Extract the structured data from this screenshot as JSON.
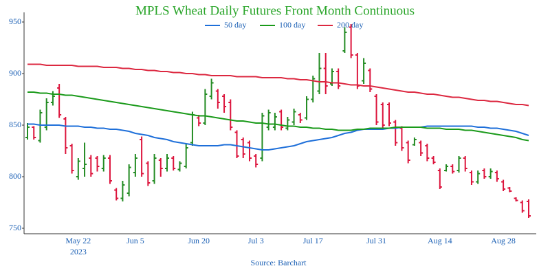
{
  "chart_data": {
    "type": "ohlc",
    "title": "MPLS Wheat Daily Futures Front Month Continuous",
    "source": "Source: Barchart",
    "x_sublabel": "2023",
    "categories": [
      null,
      null,
      null,
      null,
      null,
      null,
      null,
      null,
      "May 22",
      null,
      null,
      null,
      null,
      null,
      null,
      null,
      null,
      "Jun 5",
      null,
      null,
      null,
      null,
      null,
      null,
      null,
      null,
      null,
      "Jun 20",
      null,
      null,
      null,
      null,
      null,
      null,
      null,
      null,
      "Jul 3",
      null,
      null,
      null,
      null,
      null,
      null,
      null,
      null,
      "Jul 17",
      null,
      null,
      null,
      null,
      null,
      null,
      null,
      null,
      null,
      "Jul 31",
      null,
      null,
      null,
      null,
      null,
      null,
      null,
      null,
      null,
      "Aug 14",
      null,
      null,
      null,
      null,
      null,
      null,
      null,
      null,
      null,
      "Aug 28",
      null,
      null,
      null,
      null
    ],
    "ohlc": {
      "up_color": "#228b22",
      "down_color": "#dc143c",
      "open": [
        838,
        848,
        835,
        848,
        872,
        886,
        856,
        830,
        800,
        808,
        818,
        818,
        808,
        818,
        787,
        779,
        784,
        804,
        836,
        813,
        796,
        816,
        808,
        818,
        807,
        810,
        833,
        857,
        852,
        878,
        883,
        878,
        872,
        843,
        836,
        833,
        820,
        818,
        848,
        848,
        863,
        847,
        853,
        860,
        857,
        875,
        883,
        905,
        890,
        902,
        922,
        945,
        918,
        893,
        903,
        878,
        870,
        870,
        853,
        847,
        833,
        831,
        833,
        830,
        818,
        806,
        806,
        810,
        806,
        818,
        804,
        795,
        806,
        800,
        804,
        795,
        789,
        779,
        775,
        776
      ],
      "high": [
        852,
        849,
        865,
        876,
        883,
        890,
        858,
        832,
        818,
        833,
        821,
        820,
        821,
        821,
        789,
        796,
        812,
        822,
        839,
        815,
        822,
        818,
        822,
        820,
        815,
        832,
        863,
        860,
        885,
        895,
        885,
        880,
        875,
        845,
        838,
        835,
        822,
        862,
        865,
        862,
        865,
        858,
        866,
        862,
        878,
        898,
        920,
        920,
        905,
        905,
        945,
        948,
        920,
        915,
        905,
        880,
        872,
        872,
        855,
        849,
        835,
        838,
        835,
        832,
        820,
        808,
        812,
        812,
        820,
        820,
        806,
        806,
        808,
        808,
        806,
        797,
        790,
        780,
        777,
        778
      ],
      "low": [
        836,
        836,
        833,
        845,
        869,
        857,
        822,
        803,
        797,
        800,
        800,
        805,
        805,
        793,
        777,
        776,
        781,
        800,
        800,
        791,
        793,
        800,
        805,
        806,
        805,
        808,
        830,
        849,
        850,
        875,
        866,
        862,
        845,
        818,
        818,
        815,
        809,
        815,
        845,
        845,
        845,
        845,
        850,
        852,
        855,
        872,
        880,
        880,
        888,
        885,
        920,
        915,
        885,
        890,
        882,
        850,
        847,
        849,
        830,
        825,
        813,
        830,
        820,
        815,
        812,
        788,
        805,
        803,
        804,
        805,
        792,
        793,
        798,
        798,
        795,
        786,
        785,
        776,
        765,
        760
      ],
      "close": [
        848,
        838,
        862,
        872,
        878,
        860,
        828,
        806,
        815,
        812,
        803,
        810,
        818,
        796,
        779,
        792,
        809,
        818,
        803,
        794,
        818,
        808,
        818,
        808,
        813,
        828,
        860,
        852,
        880,
        891,
        872,
        868,
        848,
        820,
        822,
        818,
        812,
        859,
        862,
        858,
        848,
        855,
        863,
        855,
        875,
        895,
        905,
        888,
        902,
        888,
        940,
        918,
        888,
        910,
        885,
        853,
        850,
        852,
        833,
        828,
        816,
        836,
        823,
        818,
        814,
        790,
        810,
        805,
        818,
        808,
        795,
        803,
        800,
        805,
        798,
        788,
        786,
        777,
        767,
        762
      ]
    },
    "series": [
      {
        "name": "50 day",
        "color": "#1e6fd9",
        "values": [
          851,
          851,
          850,
          850,
          850,
          850,
          849,
          849,
          849,
          848,
          848,
          847,
          847,
          846,
          846,
          845,
          844,
          842,
          841,
          840,
          838,
          837,
          836,
          834,
          833,
          832,
          831,
          830,
          830,
          830,
          830,
          831,
          831,
          830,
          829,
          828,
          827,
          826,
          826,
          827,
          828,
          829,
          830,
          832,
          834,
          835,
          836,
          837,
          838,
          840,
          842,
          843,
          845,
          846,
          846,
          846,
          846,
          847,
          847,
          848,
          848,
          848,
          848,
          849,
          849,
          849,
          849,
          849,
          849,
          849,
          849,
          848,
          848,
          847,
          847,
          846,
          845,
          844,
          842,
          840
        ]
      },
      {
        "name": "100 day",
        "color": "#1a9a1a",
        "values": [
          882,
          882,
          881,
          881,
          880,
          880,
          879,
          879,
          878,
          877,
          876,
          875,
          874,
          873,
          872,
          871,
          870,
          869,
          868,
          867,
          866,
          865,
          864,
          863,
          862,
          861,
          860,
          859,
          859,
          858,
          857,
          856,
          855,
          854,
          854,
          853,
          852,
          852,
          851,
          851,
          850,
          849,
          849,
          848,
          848,
          847,
          847,
          846,
          846,
          845,
          845,
          845,
          846,
          846,
          847,
          847,
          847,
          847,
          848,
          848,
          848,
          848,
          848,
          847,
          847,
          847,
          846,
          846,
          846,
          845,
          845,
          844,
          843,
          842,
          841,
          840,
          839,
          838,
          836,
          835
        ]
      },
      {
        "name": "200 day",
        "color": "#dc2840",
        "values": [
          909,
          909,
          909,
          908,
          908,
          908,
          908,
          908,
          907,
          907,
          907,
          907,
          906,
          906,
          906,
          905,
          905,
          904,
          904,
          903,
          903,
          902,
          902,
          901,
          901,
          900,
          900,
          899,
          899,
          898,
          898,
          898,
          898,
          897,
          897,
          897,
          897,
          896,
          896,
          896,
          896,
          895,
          895,
          894,
          894,
          893,
          892,
          892,
          891,
          891,
          890,
          889,
          889,
          888,
          888,
          887,
          886,
          885,
          884,
          883,
          882,
          882,
          881,
          880,
          880,
          879,
          878,
          877,
          877,
          876,
          875,
          874,
          874,
          873,
          873,
          872,
          871,
          870,
          870,
          869
        ]
      }
    ],
    "ylim": [
      750,
      958
    ],
    "yticks": [
      750,
      800,
      850,
      900,
      950
    ]
  }
}
